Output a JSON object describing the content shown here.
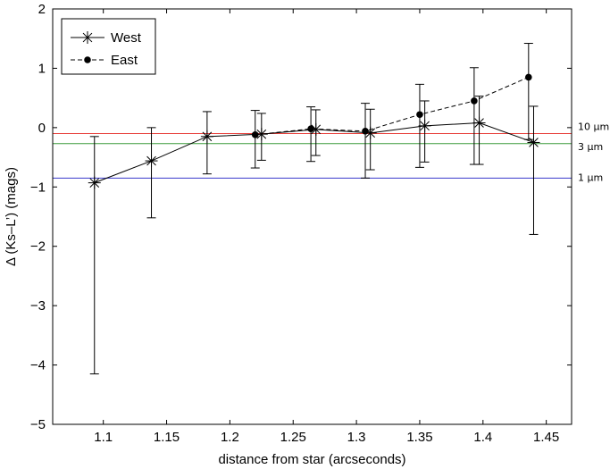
{
  "chart_data": {
    "type": "line",
    "title": "",
    "xlabel": "distance from star (arcseconds)",
    "ylabel": "Δ (Ks–L’) (mags)",
    "xlim": [
      1.06,
      1.47
    ],
    "ylim": [
      -5,
      2
    ],
    "xticks": [
      1.1,
      1.15,
      1.2,
      1.25,
      1.3,
      1.35,
      1.4,
      1.45
    ],
    "xtick_labels": [
      "1.1",
      "1.15",
      "1.2",
      "1.25",
      "1.3",
      "1.35",
      "1.4",
      "1.45"
    ],
    "yticks": [
      -5,
      -4,
      -3,
      -2,
      -1,
      0,
      1,
      2
    ],
    "ytick_labels": [
      "−5",
      "−4",
      "−3",
      "−2",
      "−1",
      "0",
      "1",
      "2"
    ],
    "legend_position": "top-left",
    "series": [
      {
        "name": "West",
        "style": "solid line, asterisk markers",
        "color": "#000000",
        "x": [
          1.093,
          1.138,
          1.182,
          1.225,
          1.268,
          1.311,
          1.354,
          1.397,
          1.44
        ],
        "y": [
          -0.93,
          -0.56,
          -0.15,
          -0.11,
          -0.03,
          -0.09,
          0.03,
          0.08,
          -0.25
        ],
        "err_low": [
          -4.15,
          -1.52,
          -0.78,
          -0.55,
          -0.47,
          -0.71,
          -0.58,
          -0.62,
          -1.8
        ],
        "err_high": [
          -0.15,
          0.0,
          0.27,
          0.24,
          0.3,
          0.31,
          0.45,
          0.53,
          0.36
        ]
      },
      {
        "name": "East",
        "style": "dashed line, filled circle markers",
        "color": "#000000",
        "x": [
          1.22,
          1.264,
          1.307,
          1.35,
          1.393,
          1.436
        ],
        "y": [
          -0.12,
          -0.02,
          -0.06,
          0.22,
          0.45,
          0.85
        ],
        "err_low": [
          -0.68,
          -0.57,
          -0.85,
          -0.67,
          -0.62,
          -0.2
        ],
        "err_high": [
          0.29,
          0.35,
          0.41,
          0.73,
          1.01,
          1.42
        ]
      }
    ],
    "reference_lines": [
      {
        "label": "10 µm",
        "y": -0.1,
        "color": "#e8413c"
      },
      {
        "label": "3 µm",
        "y": -0.27,
        "color": "#3a9a3a"
      },
      {
        "label": "1 µm",
        "y": -0.85,
        "color": "#3a3acc"
      }
    ]
  }
}
